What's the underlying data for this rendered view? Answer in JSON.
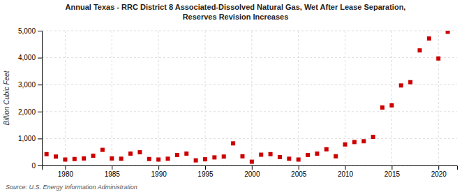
{
  "chart_data": {
    "type": "scatter",
    "title": "Annual Texas - RRC District 8 Associated-Dissolved Natural Gas, Wet After Lease Separation,",
    "subtitle": "Reserves Revision Increases",
    "y_label": "Billion Cubic Feet",
    "annotations": [
      "Source: U.S. Energy Information Administration"
    ],
    "color": "#cc0000",
    "marker": "square",
    "grid": true,
    "x": [
      1978,
      1979,
      1980,
      1981,
      1982,
      1983,
      1984,
      1985,
      1986,
      1987,
      1988,
      1989,
      1990,
      1991,
      1992,
      1993,
      1994,
      1995,
      1996,
      1997,
      1998,
      1999,
      2000,
      2001,
      2002,
      2003,
      2004,
      2005,
      2006,
      2007,
      2008,
      2009,
      2010,
      2011,
      2012,
      2013,
      2014,
      2015,
      2016,
      2017,
      2018,
      2019,
      2020,
      2021
    ],
    "values": [
      420,
      330,
      220,
      240,
      260,
      360,
      580,
      260,
      250,
      440,
      490,
      240,
      220,
      250,
      390,
      440,
      190,
      230,
      300,
      330,
      820,
      340,
      140,
      400,
      420,
      310,
      250,
      220,
      390,
      440,
      600,
      340,
      780,
      870,
      900,
      1060,
      2150,
      2230,
      2970,
      3090,
      4270,
      4710,
      3970,
      4960
    ],
    "xlim": [
      1977.5,
      2022
    ],
    "xticks": [
      1980,
      1985,
      1990,
      1995,
      2000,
      2005,
      2010,
      2015,
      2020
    ],
    "ylim": [
      0,
      5000
    ],
    "yticks": [
      0,
      {
        "value": 1000,
        "label": "1,000"
      },
      {
        "value": 2000,
        "label": "2,000"
      },
      {
        "value": 3000,
        "label": "3,000"
      },
      {
        "value": 4000,
        "label": "4,000"
      },
      {
        "value": 5000,
        "label": "5,000"
      }
    ]
  }
}
